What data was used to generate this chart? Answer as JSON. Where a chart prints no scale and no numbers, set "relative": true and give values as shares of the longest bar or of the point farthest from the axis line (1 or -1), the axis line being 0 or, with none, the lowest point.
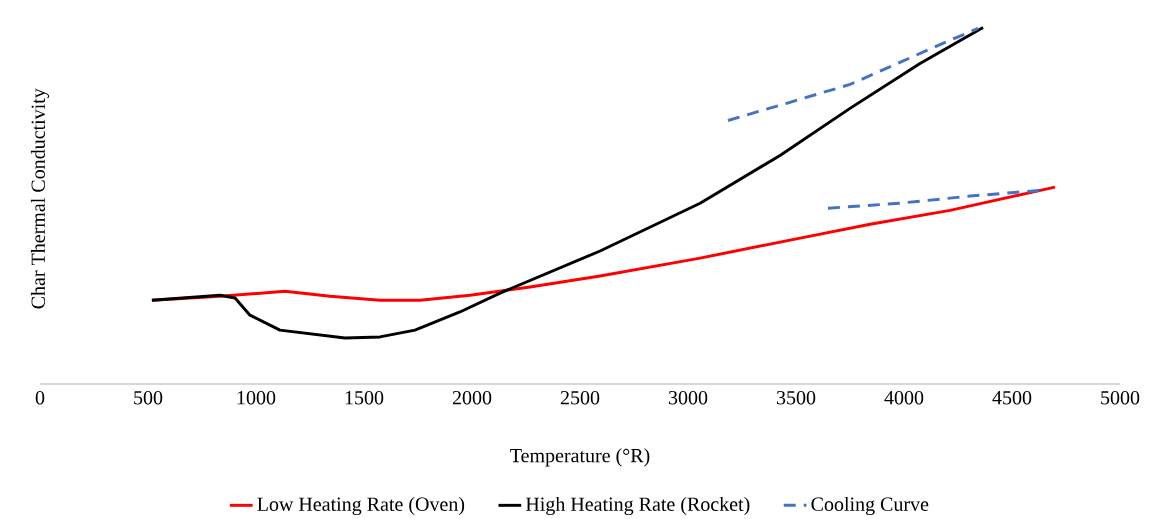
{
  "chart_data": {
    "type": "line",
    "xlabel": "Temperature (°R)",
    "ylabel": "Char Thermal Conductivity",
    "relative": true,
    "xlim": [
      0,
      5000
    ],
    "xticks": [
      0,
      500,
      1000,
      1500,
      2000,
      2500,
      3000,
      3500,
      4000,
      4500,
      5000
    ],
    "legend": "bottom",
    "marker": "none",
    "series": [
      {
        "name": "Low Heating Rate (Oven)",
        "color": "#ff0000",
        "x": [
          518,
          833,
          1134,
          1343,
          1574,
          1759,
          1991,
          2269,
          2593,
          3056,
          3519,
          3843,
          4213,
          4699
        ],
        "values": [
          0.235,
          0.246,
          0.26,
          0.246,
          0.235,
          0.235,
          0.249,
          0.272,
          0.303,
          0.353,
          0.409,
          0.448,
          0.487,
          0.552
        ]
      },
      {
        "name": "High Heating Rate (Rocket)",
        "color": "#000000",
        "x": [
          518,
          833,
          903,
          972,
          1111,
          1412,
          1574,
          1736,
          1944,
          2130,
          2593,
          3056,
          3426,
          3750,
          4074,
          4366
        ],
        "values": [
          0.235,
          0.249,
          0.241,
          0.193,
          0.151,
          0.129,
          0.132,
          0.151,
          0.202,
          0.255,
          0.373,
          0.507,
          0.641,
          0.773,
          0.899,
          1
        ]
      },
      {
        "name": "Cooling Curve",
        "color": "#4472c4",
        "line_style": "dashed",
        "x": [
          3185,
          3472,
          3750,
          3981,
          4213,
          4343,
          null,
          3648,
          3981,
          4306,
          4630
        ],
        "values": [
          0.739,
          0.79,
          0.84,
          0.902,
          0.964,
          0.997,
          null,
          0.493,
          0.507,
          0.527,
          0.543
        ]
      }
    ]
  }
}
